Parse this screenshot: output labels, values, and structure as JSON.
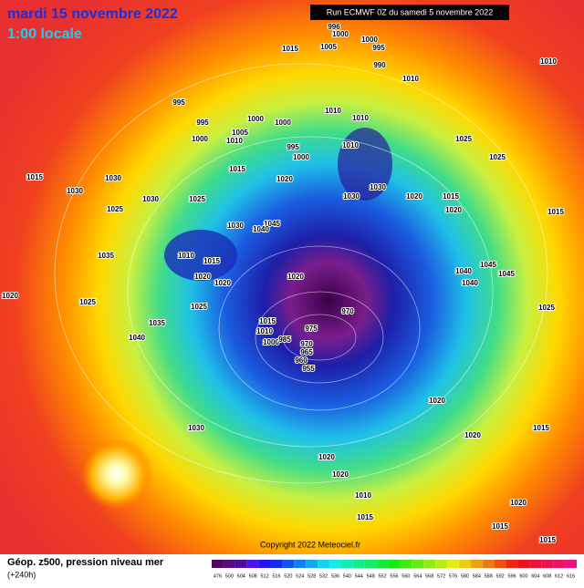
{
  "header": {
    "date": "mardi 15 novembre 2022",
    "time": "1:00 locale",
    "run": "Run ECMWF 0Z du samedi 5 novembre 2022"
  },
  "map": {
    "isobar_labels": [
      "996",
      "1000",
      "1005",
      "1000",
      "995",
      "990",
      "1015",
      "1010",
      "1010",
      "995",
      "995",
      "1000",
      "1000",
      "1000",
      "1005",
      "1010",
      "1015",
      "995",
      "1000",
      "1010",
      "1010",
      "1010",
      "1025",
      "1025",
      "1015",
      "1030",
      "1030",
      "1030",
      "1025",
      "1020",
      "1030",
      "1030",
      "1020",
      "1015",
      "1020",
      "1015",
      "1025",
      "1035",
      "1030",
      "1045",
      "1040",
      "1010",
      "1015",
      "1020",
      "1020",
      "1020",
      "1045",
      "1045",
      "1040",
      "1040",
      "1025",
      "1025",
      "1035",
      "1040",
      "970",
      "975",
      "1015",
      "1010",
      "1000",
      "985",
      "970",
      "965",
      "960",
      "955",
      "1020",
      "1025",
      "1020",
      "1020",
      "1015",
      "1030",
      "1020",
      "1020",
      "1010",
      "1015",
      "1020",
      "1015",
      "1015"
    ],
    "copyright": "Copyright 2022 Meteociel.fr"
  },
  "footer": {
    "caption": "Géop. z500, pression niveau mer",
    "lead": "(+240h)",
    "scale": [
      "476",
      "500",
      "504",
      "508",
      "512",
      "516",
      "520",
      "524",
      "528",
      "532",
      "536",
      "540",
      "544",
      "548",
      "552",
      "556",
      "560",
      "564",
      "568",
      "572",
      "576",
      "580",
      "584",
      "588",
      "592",
      "596",
      "600",
      "604",
      "608",
      "612",
      "616"
    ]
  }
}
